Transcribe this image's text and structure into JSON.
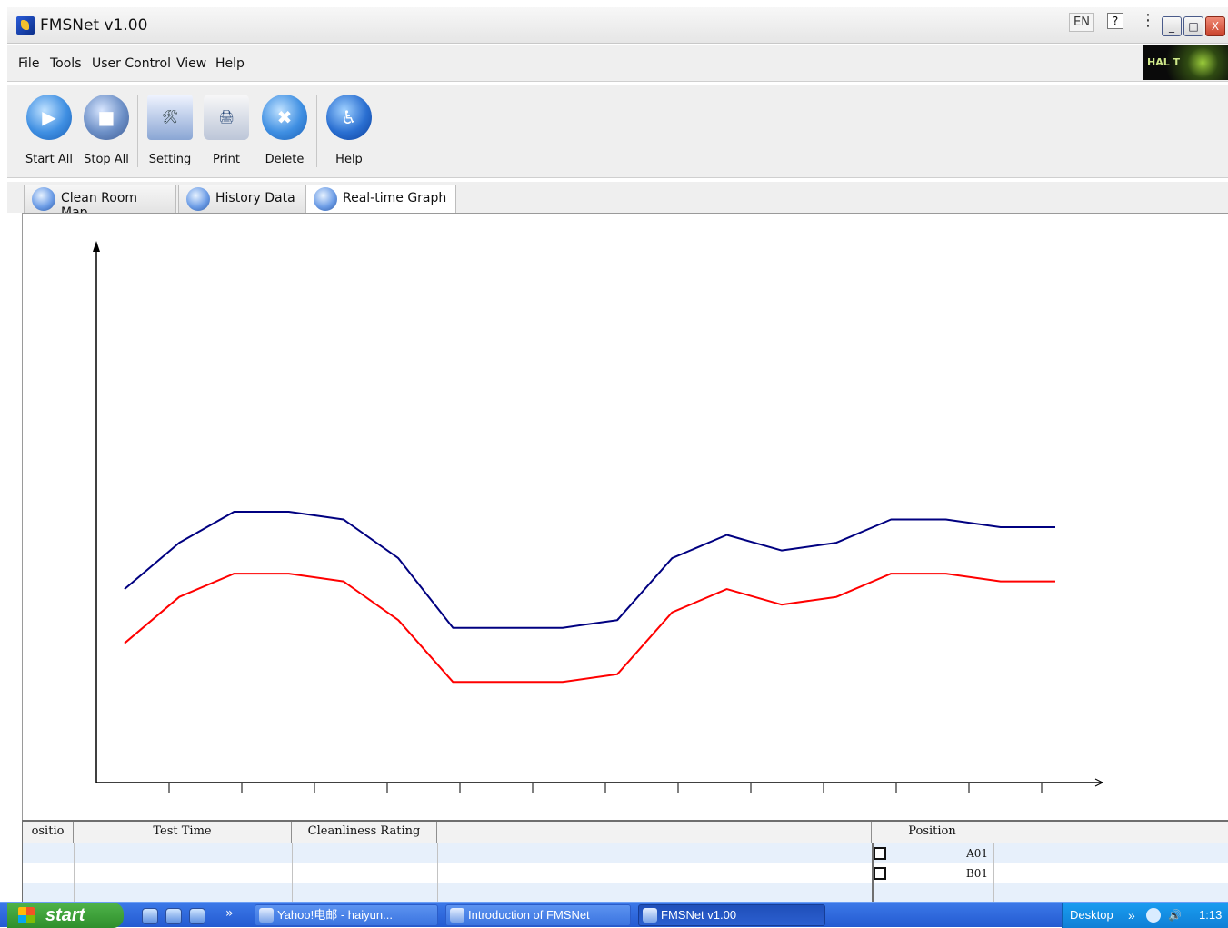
{
  "window": {
    "title": "FMSNet v1.00"
  },
  "title_right": {
    "lang": "EN",
    "help_glyph": "?",
    "minimize_glyph": "_",
    "maximize_glyph": "□",
    "close_glyph": "X"
  },
  "menu": {
    "items": [
      "File",
      "Tools",
      "User Control",
      "View",
      "Help"
    ],
    "logo_text": "HAL T"
  },
  "toolbar": {
    "buttons": [
      {
        "label": "Start All",
        "icon": "play-icon",
        "glyph": "▶"
      },
      {
        "label": "Stop All",
        "icon": "stop-icon",
        "glyph": "■"
      },
      {
        "label": "Setting",
        "icon": "tools-icon",
        "glyph": "🛠"
      },
      {
        "label": "Print",
        "icon": "printer-icon",
        "glyph": "🖨"
      },
      {
        "label": "Delete",
        "icon": "delete-icon",
        "glyph": "✖"
      },
      {
        "label": "Help",
        "icon": "accessibility-icon",
        "glyph": "♿"
      }
    ]
  },
  "tabs": [
    {
      "label": "Clean Room Map",
      "active": false
    },
    {
      "label": "History Data",
      "active": false
    },
    {
      "label": "Real-time Graph",
      "active": true
    }
  ],
  "chart_data": {
    "type": "line",
    "series": [
      {
        "color": "#000080",
        "points": [
          [
            0,
            0.25
          ],
          [
            1,
            0.31
          ],
          [
            2,
            0.35
          ],
          [
            3,
            0.35
          ],
          [
            4,
            0.34
          ],
          [
            5,
            0.29
          ],
          [
            6,
            0.2
          ],
          [
            7,
            0.2
          ],
          [
            8,
            0.2
          ],
          [
            9,
            0.21
          ],
          [
            10,
            0.29
          ],
          [
            11,
            0.32
          ],
          [
            12,
            0.3
          ],
          [
            13,
            0.31
          ],
          [
            14,
            0.34
          ],
          [
            15,
            0.34
          ],
          [
            16,
            0.33
          ],
          [
            17,
            0.33
          ]
        ]
      },
      {
        "color": "#ff0000",
        "points": [
          [
            0,
            0.18
          ],
          [
            1,
            0.24
          ],
          [
            2,
            0.27
          ],
          [
            3,
            0.27
          ],
          [
            4,
            0.26
          ],
          [
            5,
            0.21
          ],
          [
            6,
            0.13
          ],
          [
            7,
            0.13
          ],
          [
            8,
            0.13
          ],
          [
            9,
            0.14
          ],
          [
            10,
            0.22
          ],
          [
            11,
            0.25
          ],
          [
            12,
            0.23
          ],
          [
            13,
            0.24
          ],
          [
            14,
            0.27
          ],
          [
            15,
            0.27
          ],
          [
            16,
            0.26
          ],
          [
            17,
            0.26
          ]
        ]
      }
    ],
    "grid": false,
    "x_ticks": 13,
    "xlim": [
      0,
      17
    ],
    "ylim": [
      0,
      0.7
    ],
    "axis_color": "#000000"
  },
  "table": {
    "headers": [
      "ositio",
      "Test Time",
      "Cleanliness Rating",
      "",
      "Position",
      ""
    ],
    "positions": [
      "A01",
      "B01"
    ]
  },
  "taskbar": {
    "start_label": "start",
    "tasks": [
      "Yahoo!电邮 - haiyun...",
      "Introduction of FMSNet",
      "FMSNet v1.00"
    ],
    "tray": {
      "desktop": "Desktop",
      "time": "1:13"
    }
  }
}
